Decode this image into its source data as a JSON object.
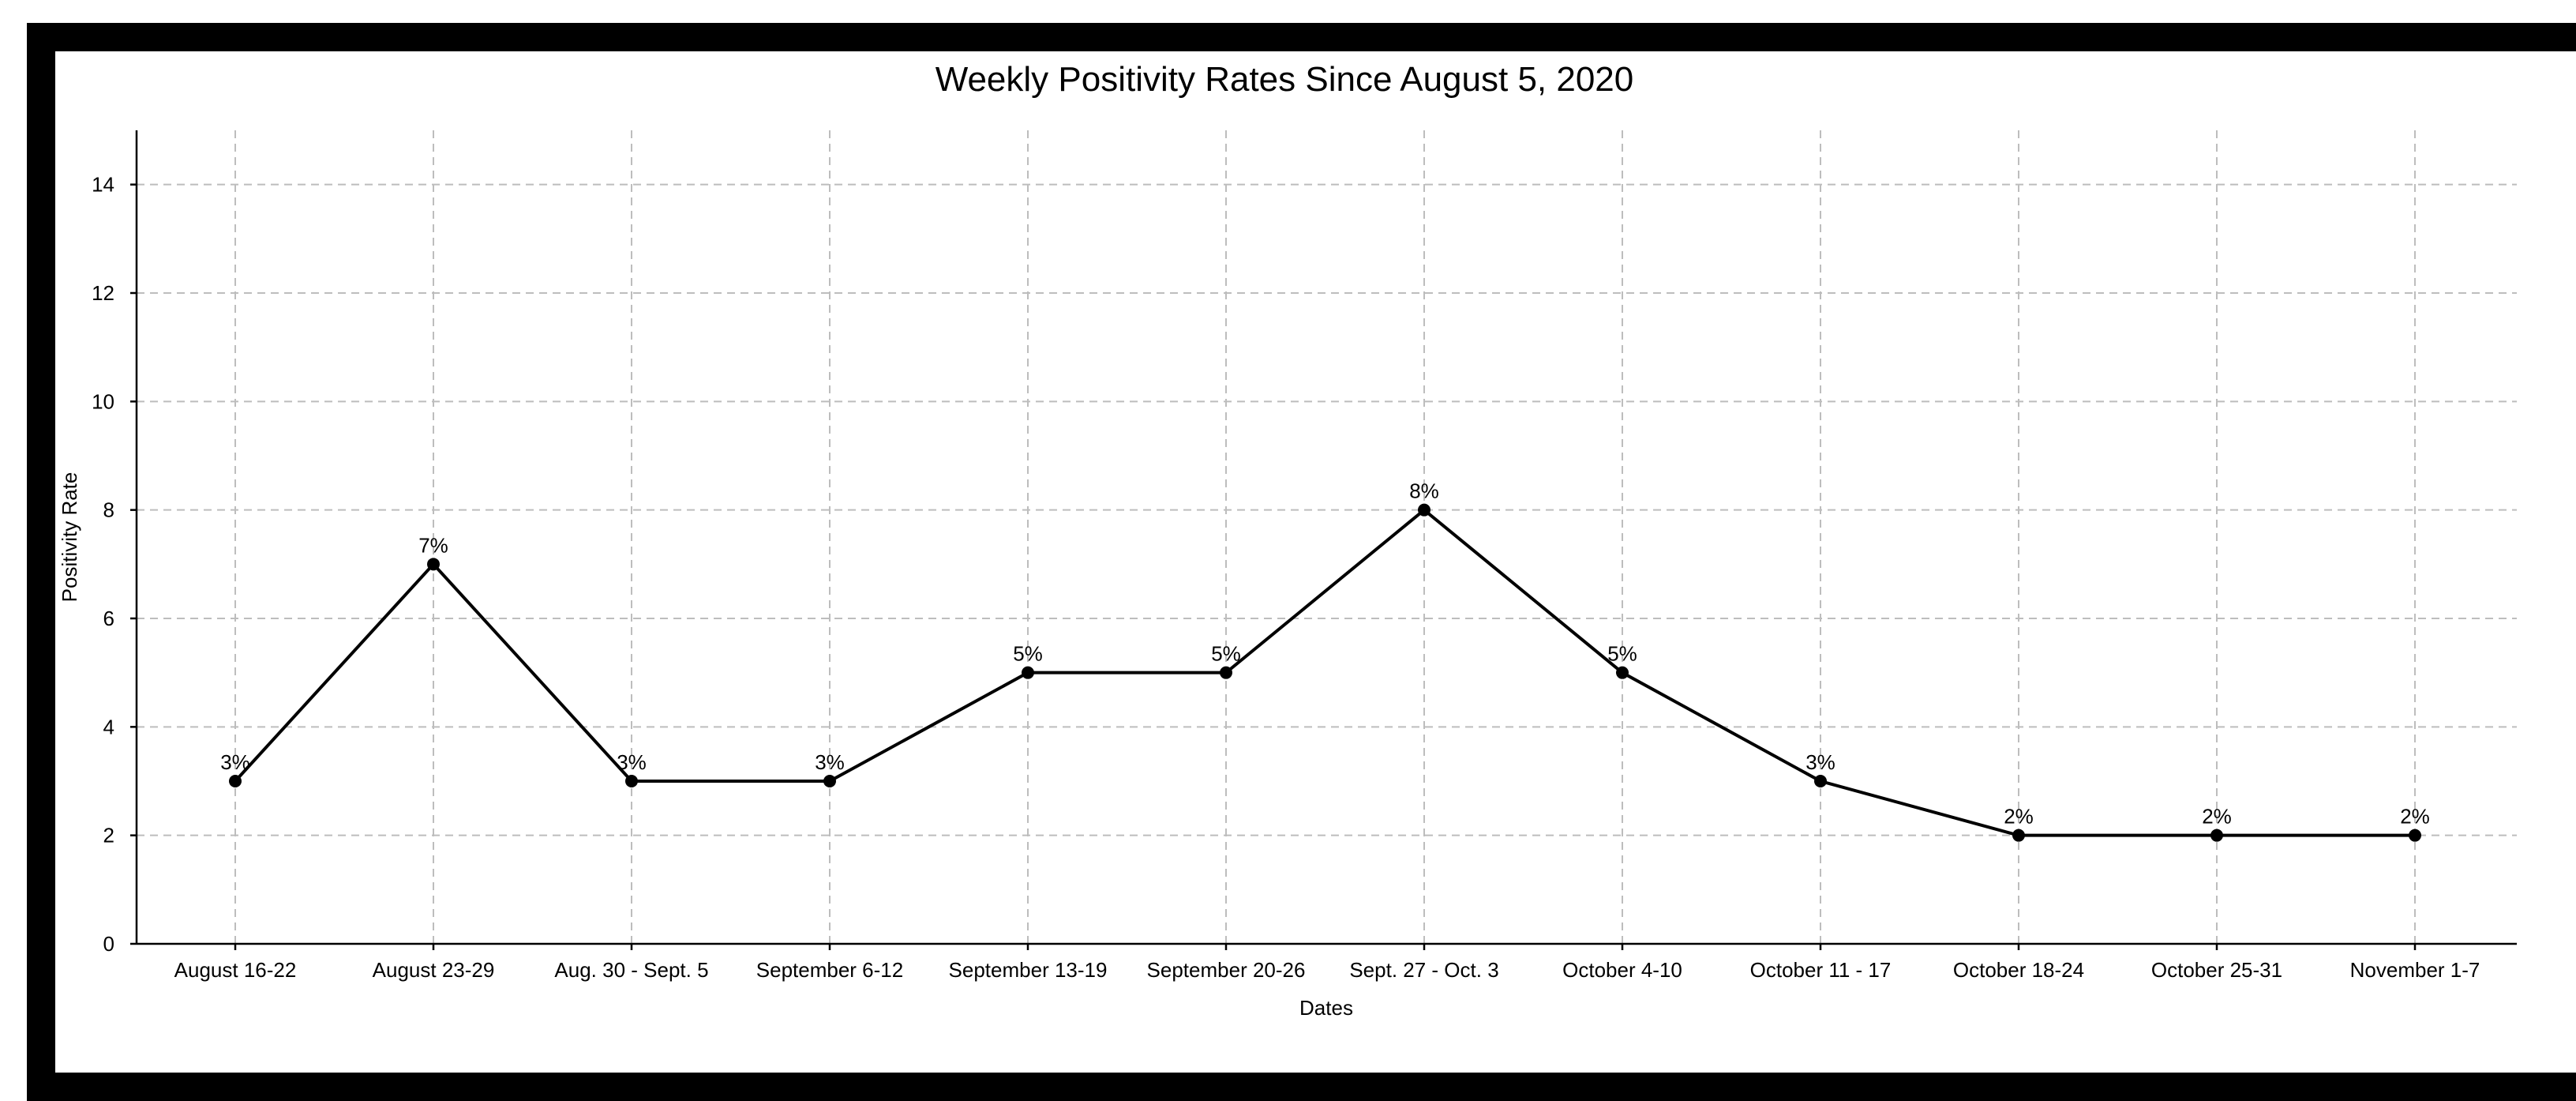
{
  "chart_data": {
    "type": "line",
    "title": "Weekly Positivity Rates Since August 5, 2020",
    "xlabel": "Dates",
    "ylabel": "Positivity Rate",
    "categories": [
      "August 16-22",
      "August 23-29",
      "Aug. 30 - Sept. 5",
      "September 6-12",
      "September 13-19",
      "September 20-26",
      "Sept. 27 - Oct. 3",
      "October 4-10",
      "October 11 - 17",
      "October 18-24",
      "October 25-31",
      "November 1-7"
    ],
    "series": [
      {
        "values": [
          3,
          7,
          3,
          3,
          5,
          5,
          8,
          5,
          3,
          2,
          2,
          2
        ],
        "data_labels": [
          "3%",
          "7%",
          "3%",
          "3%",
          "5%",
          "5%",
          "8%",
          "5%",
          "3%",
          "2%",
          "2%",
          "2%"
        ]
      }
    ],
    "ylim": [
      0,
      15
    ],
    "yticks": [
      0,
      2,
      4,
      6,
      8,
      10,
      12,
      14
    ],
    "grid": true,
    "legend": "none",
    "colors": {
      "line": "#000000",
      "grid": "#bdbdbd",
      "frame": "#000000"
    }
  }
}
